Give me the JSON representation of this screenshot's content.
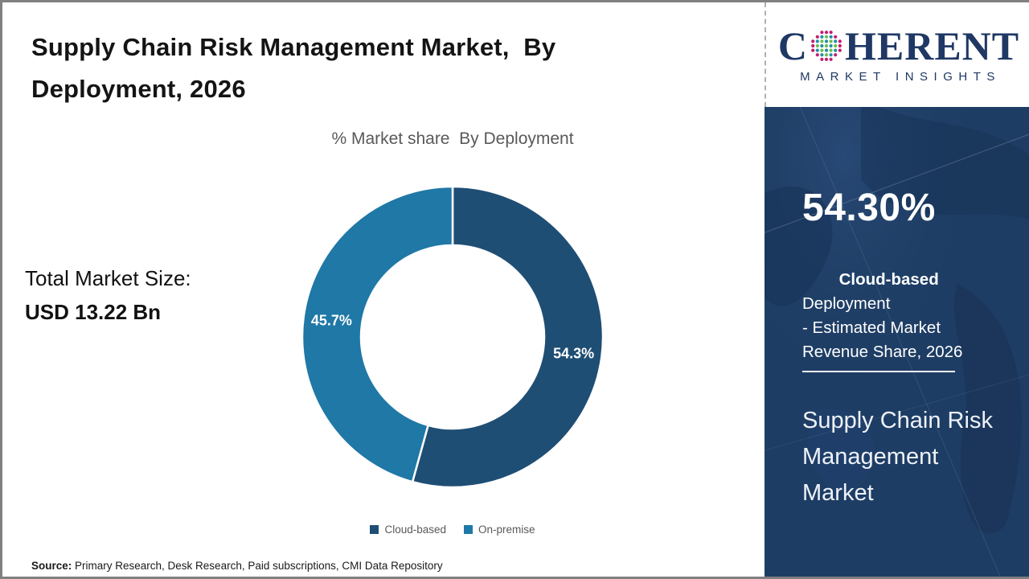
{
  "page": {
    "title": "Supply Chain Risk Management Market,  By\nDeployment, 2026",
    "source_label": "Source:",
    "source_text": " Primary Research, Desk Research, Paid subscriptions, CMI Data Repository"
  },
  "market_size": {
    "label": "Total Market Size:",
    "value": "USD 13.22 Bn"
  },
  "chart_data": {
    "type": "pie",
    "donut": true,
    "title": "% Market share  By Deployment",
    "categories": [
      "Cloud-based",
      "On-premise"
    ],
    "values": [
      54.3,
      45.7
    ],
    "labels": [
      "54.3%",
      "45.7%"
    ],
    "colors": [
      "#1F4E74",
      "#1F78A6"
    ],
    "start_angle_deg": 0,
    "direction": "clockwise",
    "legend_position": "bottom",
    "label_color": "#ffffff",
    "separator_color": "#ffffff"
  },
  "sidebar": {
    "stat_value": "54.30%",
    "stat_bold": "Cloud-based",
    "stat_rest": " Deployment\n- Estimated Market\nRevenue Share, 2026",
    "panel_title": "Supply Chain Risk\nManagement\nMarket",
    "background": "#1E3D64"
  },
  "logo": {
    "part1": "C",
    "part2": "HERENT",
    "subtitle": "MARKET INSIGHTS",
    "navy": "#1F3864",
    "globe_colors": {
      "outer": "#C21C70",
      "teal": "#1E8FA8",
      "green": "#6ABF4B"
    }
  }
}
